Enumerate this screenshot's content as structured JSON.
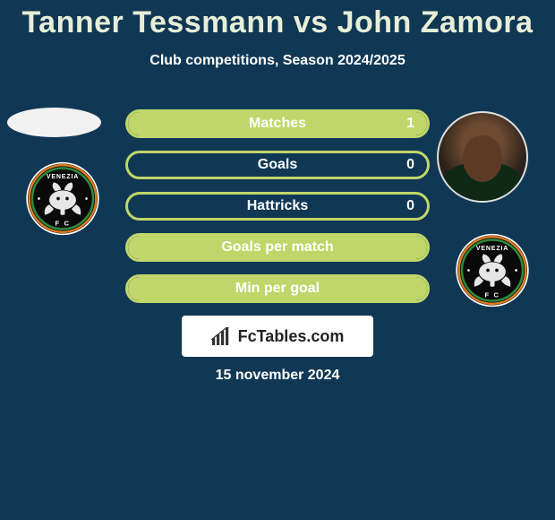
{
  "title": "Tanner Tessmann vs John Zamora",
  "subtitle": "Club competitions, Season 2024/2025",
  "date_text": "15 november 2024",
  "branding_label": "FcTables.com",
  "colors": {
    "background": "#103854",
    "bar_border": "#c0d66a",
    "bar_fill": "#c0d66a",
    "title_color": "#e8efd8",
    "text_color": "#ffffff",
    "branding_bg": "#ffffff",
    "branding_text": "#222222"
  },
  "bars": [
    {
      "label": "Matches",
      "value": "1",
      "fill_pct": 100
    },
    {
      "label": "Goals",
      "value": "0",
      "fill_pct": 0
    },
    {
      "label": "Hattricks",
      "value": "0",
      "fill_pct": 0
    },
    {
      "label": "Goals per match",
      "value": "",
      "fill_pct": 100
    },
    {
      "label": "Min per goal",
      "value": "",
      "fill_pct": 100
    }
  ],
  "crest": {
    "name": "VENEZIA FC",
    "ring_colors": [
      "#e07a1f",
      "#2e8b3e",
      "#111111"
    ],
    "inner_bg": "#0a0a0a",
    "text_color": "#ffffff",
    "lion_color": "#e6e6e6"
  }
}
